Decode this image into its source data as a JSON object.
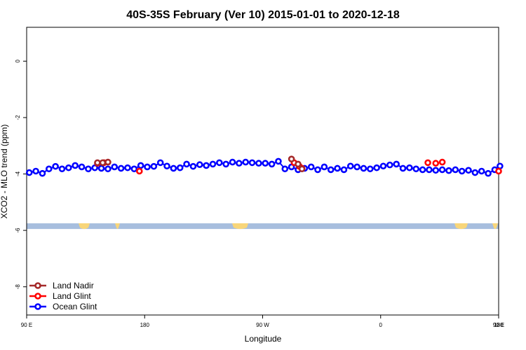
{
  "chart_data": {
    "type": "scatter",
    "title": "40S-35S February (Ver 10)   2015-01-01 to 2020-12-18",
    "xlabel": "Longitude",
    "ylabel": "XCO2 - MLO trend (ppm)",
    "xlim": [
      90,
      450
    ],
    "ylim": [
      -9,
      1.2
    ],
    "x_ticks": [
      {
        "value": 90,
        "label": "90 E"
      },
      {
        "value": 180,
        "label": "180"
      },
      {
        "value": 270,
        "label": "90 W"
      },
      {
        "value": 360,
        "label": "0"
      },
      {
        "value": 450,
        "label": "90 E"
      },
      {
        "value": 540,
        "label": "180"
      }
    ],
    "y_ticks": [
      {
        "value": 0,
        "label": "0"
      },
      {
        "value": -2,
        "label": "-2"
      },
      {
        "value": -4,
        "label": "-4"
      },
      {
        "value": -6,
        "label": "-6"
      },
      {
        "value": -8,
        "label": "-8"
      }
    ],
    "grid": false,
    "legend_position": "bottom-left",
    "map_strip": {
      "y_top": -5.75,
      "y_bottom": -5.95,
      "ocean_color": "#a7bede",
      "land_color": "#f8d67a"
    },
    "series": [
      {
        "name": "Land Nadir",
        "color": "#a52a2a",
        "x": [
          144,
          148,
          152,
          292,
          297,
          300
        ],
        "y": [
          -3.6,
          -3.6,
          -3.58,
          -3.47,
          -3.65,
          -3.82
        ]
      },
      {
        "name": "Land Glint",
        "color": "#ff0000",
        "x": [
          144,
          149,
          176,
          294,
          298,
          300,
          396,
          402,
          407,
          450
        ],
        "y": [
          -3.62,
          -3.6,
          -3.9,
          -3.6,
          -3.73,
          -3.8,
          -3.6,
          -3.62,
          -3.58,
          -3.9
        ]
      },
      {
        "name": "Ocean Glint",
        "color": "#0000ff",
        "x": [
          92,
          97,
          102,
          107,
          112,
          117,
          122,
          127,
          132,
          137,
          142,
          147,
          152,
          157,
          162,
          167,
          172,
          177,
          182,
          187,
          192,
          197,
          202,
          207,
          212,
          217,
          222,
          227,
          232,
          237,
          242,
          247,
          252,
          257,
          262,
          267,
          272,
          277,
          282,
          287,
          292,
          297,
          302,
          307,
          312,
          317,
          322,
          327,
          332,
          337,
          342,
          347,
          352,
          357,
          362,
          367,
          372,
          377,
          382,
          387,
          392,
          397,
          402,
          407,
          412,
          417,
          422,
          427,
          432,
          437,
          442,
          447,
          451
        ],
        "y": [
          -3.95,
          -3.9,
          -3.98,
          -3.82,
          -3.73,
          -3.82,
          -3.78,
          -3.7,
          -3.75,
          -3.82,
          -3.78,
          -3.8,
          -3.82,
          -3.75,
          -3.8,
          -3.78,
          -3.82,
          -3.7,
          -3.75,
          -3.73,
          -3.6,
          -3.72,
          -3.8,
          -3.78,
          -3.65,
          -3.73,
          -3.67,
          -3.7,
          -3.65,
          -3.6,
          -3.65,
          -3.58,
          -3.62,
          -3.58,
          -3.6,
          -3.62,
          -3.62,
          -3.65,
          -3.55,
          -3.82,
          -3.75,
          -3.85,
          -3.8,
          -3.75,
          -3.85,
          -3.75,
          -3.85,
          -3.8,
          -3.85,
          -3.72,
          -3.75,
          -3.8,
          -3.82,
          -3.78,
          -3.72,
          -3.68,
          -3.65,
          -3.8,
          -3.78,
          -3.82,
          -3.85,
          -3.85,
          -3.87,
          -3.85,
          -3.88,
          -3.85,
          -3.9,
          -3.87,
          -3.95,
          -3.9,
          -3.98,
          -3.85,
          -3.72
        ]
      }
    ]
  }
}
